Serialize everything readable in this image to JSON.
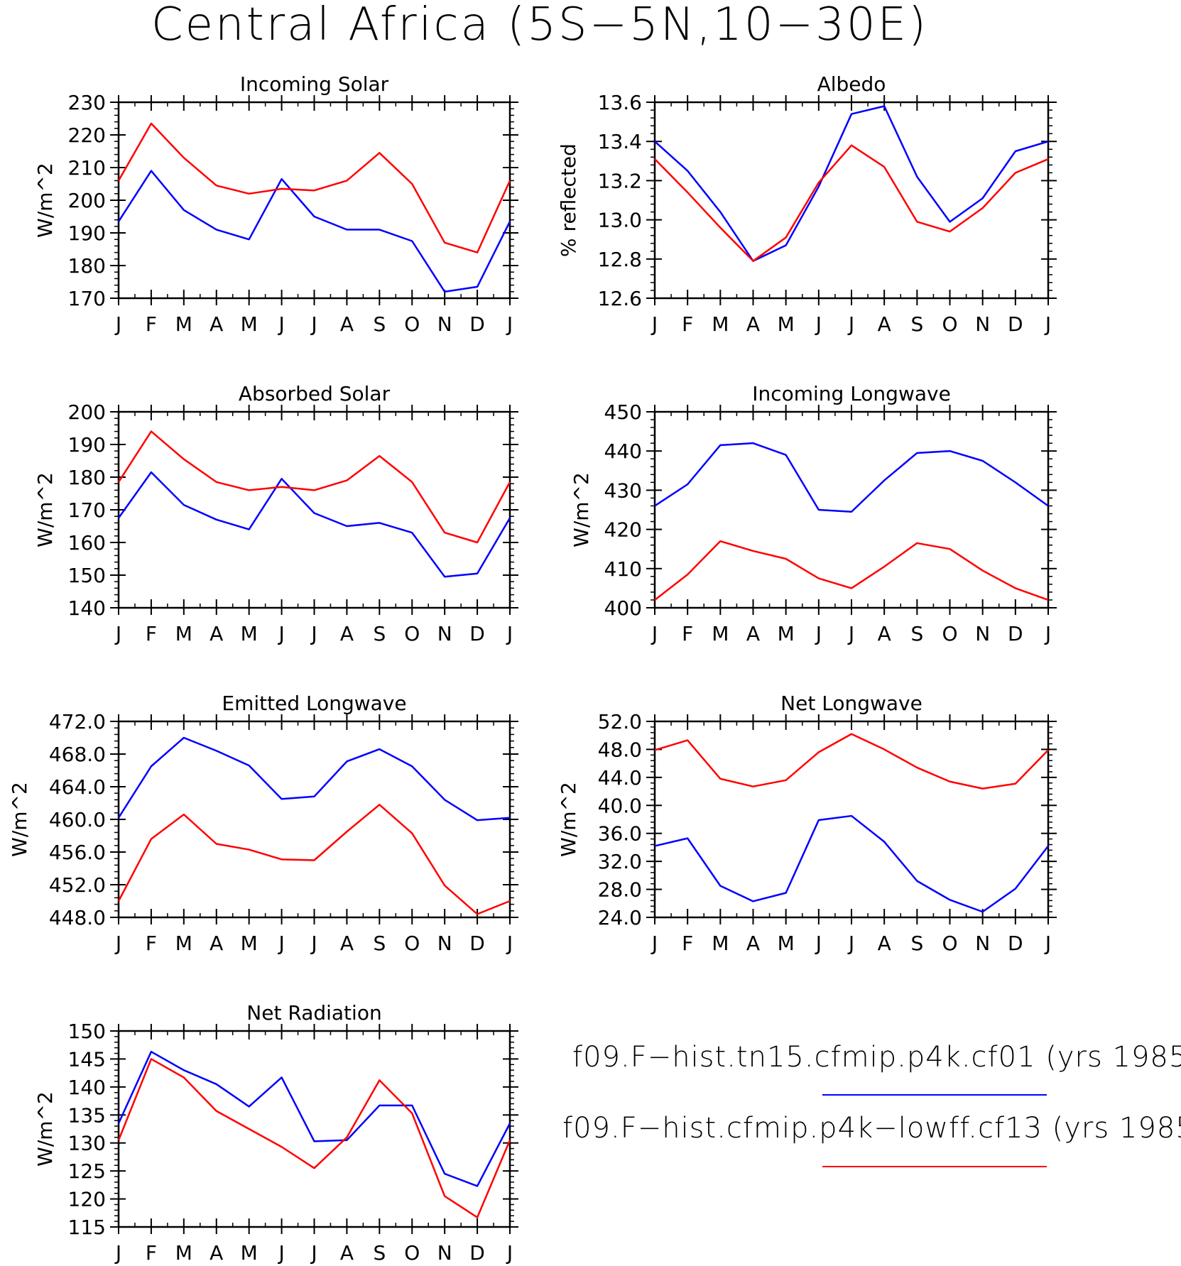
{
  "title": "Central Africa (5S−5N,10−30E)",
  "legend": [
    {
      "label": "f09.F−hist.tn15.cfmip.p4k.cf01 (yrs 1985",
      "color": "#0000ff"
    },
    {
      "label": "f09.F−hist.cfmip.p4k−lowff.cf13 (yrs 1985",
      "color": "#ff0000"
    }
  ],
  "chart_data": [
    {
      "type": "line",
      "title": "Incoming Solar",
      "ylabel": "W/m^2",
      "xticks": [
        "J",
        "F",
        "M",
        "A",
        "M",
        "J",
        "J",
        "A",
        "S",
        "O",
        "N",
        "D",
        "J"
      ],
      "ylim": [
        170,
        230
      ],
      "yticks": [
        "170",
        "180",
        "190",
        "200",
        "210",
        "220",
        "230"
      ],
      "series": [
        {
          "color": "#0000ff",
          "values": [
            193.5,
            209,
            197,
            191,
            188,
            206.5,
            195,
            191,
            191,
            187.5,
            172,
            173.5,
            193.5
          ]
        },
        {
          "color": "#ff0000",
          "values": [
            206,
            223.5,
            213,
            204.5,
            202,
            203.5,
            203,
            206,
            214.5,
            205,
            187,
            184,
            206
          ]
        }
      ]
    },
    {
      "type": "line",
      "title": "Albedo",
      "ylabel": "% reflected",
      "xticks": [
        "J",
        "F",
        "M",
        "A",
        "M",
        "J",
        "J",
        "A",
        "S",
        "O",
        "N",
        "D",
        "J"
      ],
      "ylim": [
        12.6,
        13.6
      ],
      "yticks": [
        "12.6",
        "12.8",
        "13.0",
        "13.2",
        "13.4",
        "13.6"
      ],
      "series": [
        {
          "color": "#0000ff",
          "values": [
            13.4,
            13.25,
            13.04,
            12.79,
            12.87,
            13.17,
            13.54,
            13.58,
            13.22,
            12.99,
            13.11,
            13.35,
            13.4
          ]
        },
        {
          "color": "#ff0000",
          "values": [
            13.31,
            13.14,
            12.96,
            12.79,
            12.91,
            13.19,
            13.38,
            13.27,
            12.99,
            12.94,
            13.06,
            13.24,
            13.31
          ]
        }
      ]
    },
    {
      "type": "line",
      "title": "Absorbed Solar",
      "ylabel": "W/m^2",
      "xticks": [
        "J",
        "F",
        "M",
        "A",
        "M",
        "J",
        "J",
        "A",
        "S",
        "O",
        "N",
        "D",
        "J"
      ],
      "ylim": [
        140,
        200
      ],
      "yticks": [
        "140",
        "150",
        "160",
        "170",
        "180",
        "190",
        "200"
      ],
      "series": [
        {
          "color": "#0000ff",
          "values": [
            167.5,
            181.5,
            171.5,
            167,
            164,
            179.5,
            169,
            165,
            166,
            163,
            149.5,
            150.5,
            167.5
          ]
        },
        {
          "color": "#ff0000",
          "values": [
            178.5,
            194,
            185.5,
            178.5,
            176,
            177,
            176,
            179,
            186.5,
            178.5,
            163,
            160,
            178.5
          ]
        }
      ]
    },
    {
      "type": "line",
      "title": "Incoming Longwave",
      "ylabel": "W/m^2",
      "xticks": [
        "J",
        "F",
        "M",
        "A",
        "M",
        "J",
        "J",
        "A",
        "S",
        "O",
        "N",
        "D",
        "J"
      ],
      "ylim": [
        400,
        450
      ],
      "yticks": [
        "400",
        "410",
        "420",
        "430",
        "440",
        "450"
      ],
      "series": [
        {
          "color": "#0000ff",
          "values": [
            426,
            431.5,
            441.5,
            442,
            439,
            425,
            424.5,
            432.5,
            439.5,
            440,
            437.5,
            432,
            426
          ]
        },
        {
          "color": "#ff0000",
          "values": [
            402,
            408.5,
            417,
            414.5,
            412.5,
            407.5,
            405,
            410.5,
            416.5,
            415,
            409.5,
            405,
            402
          ]
        }
      ]
    },
    {
      "type": "line",
      "title": "Emitted Longwave",
      "ylabel": "W/m^2",
      "xticks": [
        "J",
        "F",
        "M",
        "A",
        "M",
        "J",
        "J",
        "A",
        "S",
        "O",
        "N",
        "D",
        "J"
      ],
      "ylim": [
        448,
        472
      ],
      "yticks": [
        "448.0",
        "452.0",
        "456.0",
        "460.0",
        "464.0",
        "468.0",
        "472.0"
      ],
      "series": [
        {
          "color": "#0000ff",
          "values": [
            460.2,
            466.5,
            470.0,
            468.4,
            466.6,
            462.5,
            462.8,
            467.1,
            468.6,
            466.5,
            462.4,
            459.9,
            460.2
          ]
        },
        {
          "color": "#ff0000",
          "values": [
            450.0,
            457.6,
            460.6,
            457.0,
            456.3,
            455.1,
            455.0,
            458.5,
            461.8,
            458.3,
            451.9,
            448.4,
            450.0
          ]
        }
      ]
    },
    {
      "type": "line",
      "title": "Net Longwave",
      "ylabel": "W/m^2",
      "xticks": [
        "J",
        "F",
        "M",
        "A",
        "M",
        "J",
        "J",
        "A",
        "S",
        "O",
        "N",
        "D",
        "J"
      ],
      "ylim": [
        24,
        52
      ],
      "yticks": [
        "24.0",
        "28.0",
        "32.0",
        "36.0",
        "40.0",
        "44.0",
        "48.0",
        "52.0"
      ],
      "series": [
        {
          "color": "#0000ff",
          "values": [
            34.2,
            35.3,
            28.5,
            26.3,
            27.5,
            37.9,
            38.5,
            34.8,
            29.2,
            26.5,
            24.8,
            28.1,
            34.2
          ]
        },
        {
          "color": "#ff0000",
          "values": [
            47.9,
            49.3,
            43.8,
            42.7,
            43.6,
            47.6,
            50.2,
            48.0,
            45.4,
            43.4,
            42.4,
            43.1,
            47.9
          ]
        }
      ]
    },
    {
      "type": "line",
      "title": "Net Radiation",
      "ylabel": "W/m^2",
      "xticks": [
        "J",
        "F",
        "M",
        "A",
        "M",
        "J",
        "J",
        "A",
        "S",
        "O",
        "N",
        "D",
        "J"
      ],
      "ylim": [
        115,
        150
      ],
      "yticks": [
        "115",
        "120",
        "125",
        "130",
        "135",
        "140",
        "145",
        "150"
      ],
      "series": [
        {
          "color": "#0000ff",
          "values": [
            133.5,
            146.3,
            143,
            140.5,
            136.5,
            141.7,
            130.3,
            130.5,
            136.7,
            136.7,
            124.5,
            122.3,
            133.5
          ]
        },
        {
          "color": "#ff0000",
          "values": [
            130.5,
            145,
            141.7,
            135.7,
            132.5,
            129.3,
            125.5,
            131,
            141.2,
            135.3,
            120.5,
            116.7,
            130.5
          ]
        }
      ]
    }
  ]
}
